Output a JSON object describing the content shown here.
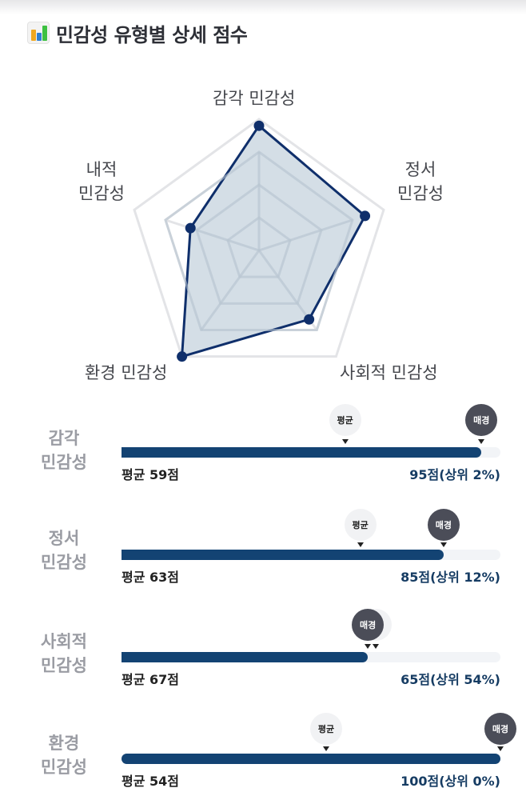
{
  "header": {
    "title": "민감성 유형별 상세 점수",
    "icon": "bar-chart-icon",
    "icon_colors": [
      "#f0a820",
      "#2f7fd0",
      "#3cc040"
    ]
  },
  "colors": {
    "radar_fill": "#cdd8e2",
    "radar_stroke": "#0f2f6b",
    "grid_outer": "#e3e4e7",
    "grid_inner": "#b8c4d0",
    "bar_fill": "#134373",
    "bar_track": "#f2f4f7",
    "pin_me": "#4b4d58",
    "pin_avg": "#f1f2f4",
    "score_text": "#163c63",
    "row_label": "#9a9ca3"
  },
  "radar": {
    "labels": {
      "sensory": "감각 민감성",
      "emotional_line1": "정서",
      "emotional_line2": "민감성",
      "social": "사회적 민감성",
      "environmental": "환경 민감성",
      "inner_line1": "내적",
      "inner_line2": "민감성"
    }
  },
  "chart_data": {
    "type": "radar",
    "title": "민감성 유형별 상세 점수",
    "categories": [
      "감각 민감성",
      "정서 민감성",
      "사회적 민감성",
      "환경 민감성",
      "내적 민감성"
    ],
    "series": [
      {
        "name": "매경",
        "values": [
          95,
          85,
          65,
          100,
          55
        ]
      }
    ],
    "rlim": [
      0,
      100
    ],
    "grid_rings": 4,
    "bars": [
      {
        "category": "감각 민감성",
        "score": 95,
        "average": 59,
        "percentile_top": 2
      },
      {
        "category": "정서 민감성",
        "score": 85,
        "average": 63,
        "percentile_top": 12
      },
      {
        "category": "사회적 민감성",
        "score": 65,
        "average": 67,
        "percentile_top": 54
      },
      {
        "category": "환경 민감성",
        "score": 100,
        "average": 54,
        "percentile_top": 0
      }
    ]
  },
  "rows": [
    {
      "label_line1": "감각",
      "label_line2": "민감성",
      "score": 95,
      "average": 59,
      "avg_text": "평균 59점",
      "score_text": "95점(상위 2%)",
      "avg_pin": "평균",
      "me_pin": "매경"
    },
    {
      "label_line1": "정서",
      "label_line2": "민감성",
      "score": 85,
      "average": 63,
      "avg_text": "평균 63점",
      "score_text": "85점(상위 12%)",
      "avg_pin": "평균",
      "me_pin": "매경"
    },
    {
      "label_line1": "사회적",
      "label_line2": "민감성",
      "score": 65,
      "average": 67,
      "avg_text": "평균 67점",
      "score_text": "65점(상위 54%)",
      "avg_pin": "평균",
      "me_pin": "매경"
    },
    {
      "label_line1": "환경",
      "label_line2": "민감성",
      "score": 100,
      "average": 54,
      "avg_text": "평균 54점",
      "score_text": "100점(상위 0%)",
      "avg_pin": "평균",
      "me_pin": "매경"
    }
  ]
}
